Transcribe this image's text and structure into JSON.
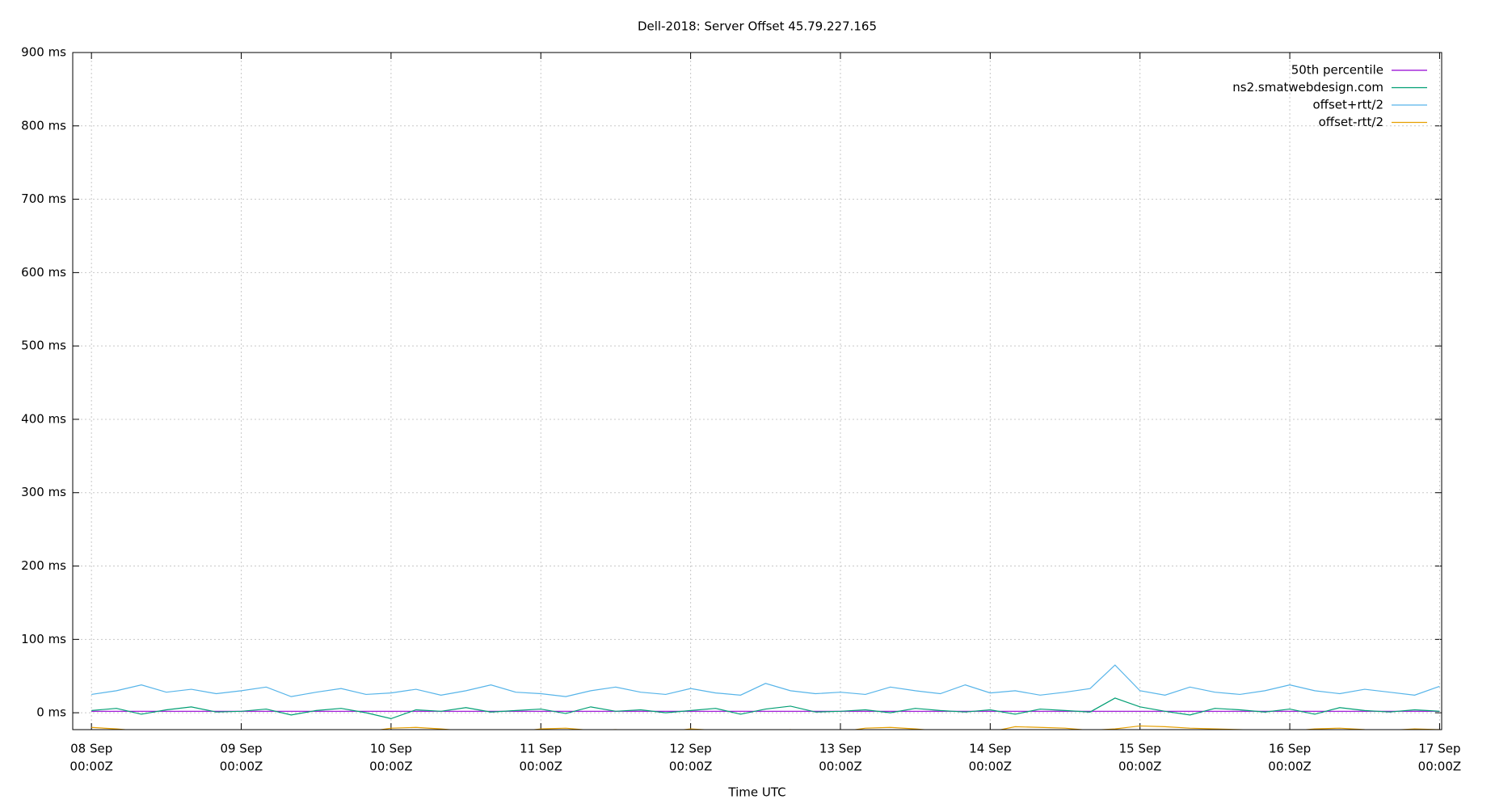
{
  "chart_data": {
    "type": "line",
    "title": "Dell-2018: Server Offset 45.79.227.165",
    "x_label": "Time UTC",
    "x": [
      "08 Sep 00:00Z",
      "08 Sep 04:00Z",
      "08 Sep 08:00Z",
      "08 Sep 12:00Z",
      "08 Sep 16:00Z",
      "08 Sep 20:00Z",
      "09 Sep 00:00Z",
      "09 Sep 04:00Z",
      "09 Sep 08:00Z",
      "09 Sep 12:00Z",
      "09 Sep 16:00Z",
      "09 Sep 20:00Z",
      "10 Sep 00:00Z",
      "10 Sep 04:00Z",
      "10 Sep 08:00Z",
      "10 Sep 12:00Z",
      "10 Sep 16:00Z",
      "10 Sep 20:00Z",
      "11 Sep 00:00Z",
      "11 Sep 04:00Z",
      "11 Sep 08:00Z",
      "11 Sep 12:00Z",
      "11 Sep 16:00Z",
      "11 Sep 20:00Z",
      "12 Sep 00:00Z",
      "12 Sep 04:00Z",
      "12 Sep 08:00Z",
      "12 Sep 12:00Z",
      "12 Sep 16:00Z",
      "12 Sep 20:00Z",
      "13 Sep 00:00Z",
      "13 Sep 04:00Z",
      "13 Sep 08:00Z",
      "13 Sep 12:00Z",
      "13 Sep 16:00Z",
      "13 Sep 20:00Z",
      "14 Sep 00:00Z",
      "14 Sep 04:00Z",
      "14 Sep 08:00Z",
      "14 Sep 12:00Z",
      "14 Sep 16:00Z",
      "14 Sep 20:00Z",
      "15 Sep 00:00Z",
      "15 Sep 04:00Z",
      "15 Sep 08:00Z",
      "15 Sep 12:00Z",
      "15 Sep 16:00Z",
      "15 Sep 20:00Z",
      "16 Sep 00:00Z",
      "16 Sep 04:00Z",
      "16 Sep 08:00Z",
      "16 Sep 12:00Z",
      "16 Sep 16:00Z",
      "16 Sep 20:00Z",
      "17 Sep 00:00Z"
    ],
    "series": [
      {
        "name": "50th percentile",
        "color": "#9400d3",
        "values": [
          2,
          2,
          2,
          2,
          2,
          2,
          2,
          2,
          2,
          2,
          2,
          2,
          2,
          2,
          2,
          2,
          2,
          2,
          2,
          2,
          2,
          2,
          2,
          2,
          2,
          2,
          2,
          2,
          2,
          2,
          2,
          2,
          2,
          2,
          2,
          2,
          2,
          2,
          2,
          2,
          2,
          2,
          2,
          2,
          2,
          2,
          2,
          2,
          2,
          2,
          2,
          2,
          2,
          2,
          2
        ]
      },
      {
        "name": "ns2.smatwebdesign.com",
        "color": "#009e73",
        "values": [
          3,
          6,
          -2,
          4,
          8,
          1,
          2,
          5,
          -3,
          3,
          6,
          0,
          -8,
          4,
          2,
          7,
          1,
          3,
          5,
          -1,
          8,
          2,
          4,
          0,
          3,
          6,
          -2,
          5,
          9,
          1,
          2,
          4,
          0,
          6,
          3,
          1,
          4,
          -2,
          5,
          3,
          1,
          20,
          8,
          2,
          -3,
          6,
          4,
          1,
          5,
          -2,
          7,
          3,
          1,
          4,
          2
        ]
      },
      {
        "name": "offset+rtt/2",
        "color": "#56b4e9",
        "values": [
          25,
          30,
          38,
          28,
          32,
          26,
          30,
          35,
          22,
          28,
          33,
          25,
          27,
          32,
          24,
          30,
          38,
          28,
          26,
          22,
          30,
          35,
          28,
          25,
          33,
          27,
          24,
          40,
          30,
          26,
          28,
          25,
          35,
          30,
          26,
          38,
          27,
          30,
          24,
          28,
          33,
          65,
          30,
          24,
          35,
          28,
          25,
          30,
          38,
          30,
          26,
          32,
          28,
          24,
          36
        ]
      },
      {
        "name": "offset-rtt/2",
        "color": "#e69f00",
        "values": [
          -20,
          -22,
          -25,
          -26,
          -24,
          -28,
          -27,
          -26,
          -25,
          -24,
          -28,
          -26,
          -21,
          -20,
          -22,
          -25,
          -27,
          -26,
          -22,
          -21,
          -24,
          -23,
          -25,
          -26,
          -22,
          -24,
          -26,
          -25,
          -23,
          -27,
          -26,
          -21,
          -20,
          -22,
          -25,
          -24,
          -26,
          -19,
          -20,
          -21,
          -24,
          -22,
          -18,
          -19,
          -21,
          -22,
          -23,
          -24,
          -25,
          -22,
          -21,
          -23,
          -24,
          -22,
          -23
        ]
      }
    ],
    "xlim": [
      "07 Sep 21:00Z",
      "17 Sep 00:20Z"
    ],
    "xticks": [
      {
        "value": "08 Sep 00:00Z",
        "label": [
          "08 Sep",
          "00:00Z"
        ]
      },
      {
        "value": "09 Sep 00:00Z",
        "label": [
          "09 Sep",
          "00:00Z"
        ]
      },
      {
        "value": "10 Sep 00:00Z",
        "label": [
          "10 Sep",
          "00:00Z"
        ]
      },
      {
        "value": "11 Sep 00:00Z",
        "label": [
          "11 Sep",
          "00:00Z"
        ]
      },
      {
        "value": "12 Sep 00:00Z",
        "label": [
          "12 Sep",
          "00:00Z"
        ]
      },
      {
        "value": "13 Sep 00:00Z",
        "label": [
          "13 Sep",
          "00:00Z"
        ]
      },
      {
        "value": "14 Sep 00:00Z",
        "label": [
          "14 Sep",
          "00:00Z"
        ]
      },
      {
        "value": "15 Sep 00:00Z",
        "label": [
          "15 Sep",
          "00:00Z"
        ]
      },
      {
        "value": "16 Sep 00:00Z",
        "label": [
          "16 Sep",
          "00:00Z"
        ]
      },
      {
        "value": "17 Sep 00:00Z",
        "label": [
          "17 Sep",
          "00:00Z"
        ]
      }
    ],
    "ylim": [
      -23,
      900
    ],
    "yticks": [
      {
        "value": 0,
        "label": "0 ms"
      },
      {
        "value": 100,
        "label": "100 ms"
      },
      {
        "value": 200,
        "label": "200 ms"
      },
      {
        "value": 300,
        "label": "300 ms"
      },
      {
        "value": 400,
        "label": "400 ms"
      },
      {
        "value": 500,
        "label": "500 ms"
      },
      {
        "value": 600,
        "label": "600 ms"
      },
      {
        "value": 700,
        "label": "700 ms"
      },
      {
        "value": 800,
        "label": "800 ms"
      },
      {
        "value": 900,
        "label": "900 ms"
      }
    ],
    "grid": true,
    "legend": "top-right"
  }
}
